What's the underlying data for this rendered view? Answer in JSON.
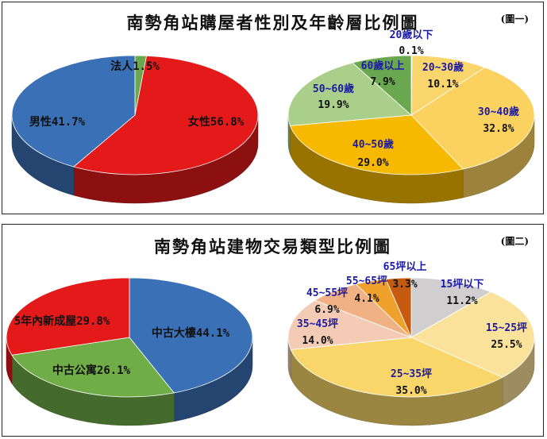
{
  "panel1": {
    "title": "南勢角站購屋者性別及年齡層比例圖",
    "figure_no": "(圖一)"
  },
  "panel2": {
    "title": "南勢角站建物交易類型比例圖",
    "figure_no": "(圖二)"
  },
  "chart_data": [
    {
      "type": "pie",
      "title": "南勢角站購屋者性別及年齡層比例圖",
      "slices": [
        {
          "name": "法人",
          "value": 1.5,
          "label": "法人1.5%",
          "color": "#6aa84f"
        },
        {
          "name": "女性",
          "value": 56.8,
          "label": "女性56.8%",
          "color": "#e41a1a"
        },
        {
          "name": "男性",
          "value": 41.7,
          "label": "男性41.7%",
          "color": "#3a70b5"
        }
      ]
    },
    {
      "type": "pie",
      "title": "南勢角站購屋者性別及年齡層比例圖",
      "slices": [
        {
          "name": "20歲以下",
          "value": 0.1,
          "pct": "0.1%",
          "color": "#bfbfbf"
        },
        {
          "name": "20~30歲",
          "value": 10.1,
          "pct": "10.1%",
          "color": "#fad56b"
        },
        {
          "name": "30~40歲",
          "value": 32.8,
          "pct": "32.8%",
          "color": "#fbd25f"
        },
        {
          "name": "40~50歲",
          "value": 29.0,
          "pct": "29.0%",
          "color": "#f7b900"
        },
        {
          "name": "50~60歲",
          "value": 19.9,
          "pct": "19.9%",
          "color": "#a9cf8a"
        },
        {
          "name": "60歲以上",
          "value": 7.9,
          "pct": "7.9%",
          "color": "#6aa84f"
        }
      ]
    },
    {
      "type": "pie",
      "title": "南勢角站建物交易類型比例圖",
      "slices": [
        {
          "name": "中古大樓",
          "value": 44.1,
          "label": "中古大樓44.1%",
          "color": "#3a70b5"
        },
        {
          "name": "中古公寓",
          "value": 26.1,
          "label": "中古公寓26.1%",
          "color": "#70ad47"
        },
        {
          "name": "5年內新成屋",
          "value": 29.8,
          "label": "5年內新成屋29.8%",
          "color": "#e41a1a"
        }
      ]
    },
    {
      "type": "pie",
      "title": "南勢角站建物交易類型比例圖",
      "slices": [
        {
          "name": "15坪以下",
          "value": 11.2,
          "pct": "11.2%",
          "color": "#d0cece"
        },
        {
          "name": "15~25坪",
          "value": 25.5,
          "pct": "25.5%",
          "color": "#fbe29a"
        },
        {
          "name": "25~35坪",
          "value": 35.0,
          "pct": "35.0%",
          "color": "#f9d669"
        },
        {
          "name": "35~45坪",
          "value": 14.0,
          "pct": "14.0%",
          "color": "#f4cbb4"
        },
        {
          "name": "45~55坪",
          "value": 6.9,
          "pct": "6.9%",
          "color": "#f0b285"
        },
        {
          "name": "55~65坪",
          "value": 4.1,
          "pct": "4.1%",
          "color": "#f0a02c"
        },
        {
          "name": "65坪以上",
          "value": 3.3,
          "pct": "3.3%",
          "color": "#c55a11"
        }
      ]
    }
  ]
}
